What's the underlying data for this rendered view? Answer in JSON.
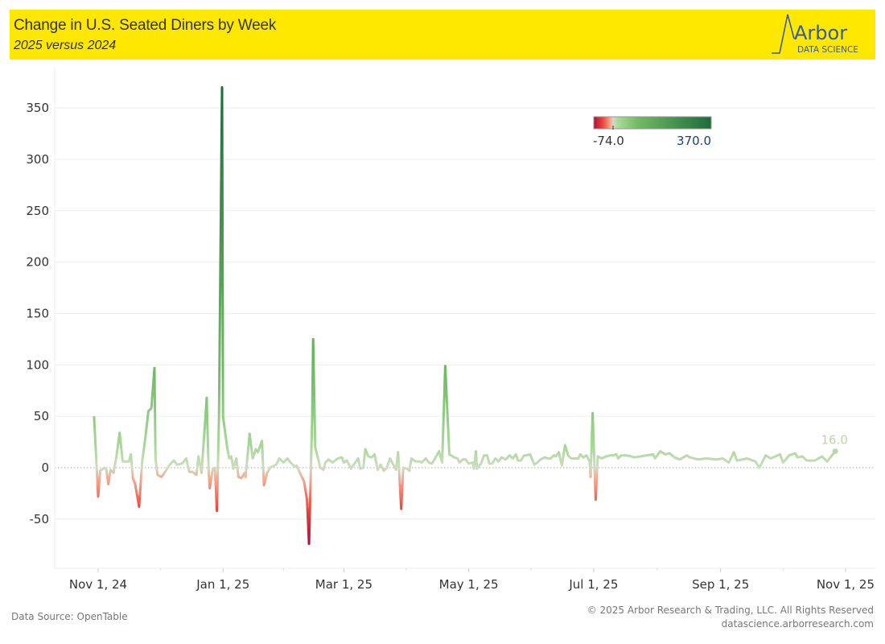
{
  "header": {
    "title": "Change in U.S. Seated Diners by Week",
    "subtitle": "2025 versus 2024",
    "logo_text": "Arbor",
    "logo_subtext": "DATA SCIENCE"
  },
  "footer": {
    "source": "Data Source: OpenTable",
    "copyright": "© 2025 Arbor Research & Trading, LLC. All Rights Reserved",
    "website": "datascience.arborresearch.com"
  },
  "colors": {
    "header_bg": "#ffe800",
    "scale": [
      "#b0103a",
      "#e8483c",
      "#f7a48c",
      "#cfdcc0",
      "#a8d898",
      "#72bb66",
      "#1f6b3a"
    ]
  },
  "chart_data": {
    "type": "line",
    "title": "Change in U.S. Seated Diners by Week",
    "subtitle": "2025 versus 2024",
    "xlabel": "",
    "ylabel": "",
    "x_unit": "days since Nov 1, 2024",
    "ylim": [
      -97,
      380
    ],
    "yticks": [
      -50,
      0,
      50,
      100,
      150,
      200,
      250,
      300,
      350
    ],
    "ytick_labels": [
      "-50",
      "0",
      "50",
      "100",
      "150",
      "200",
      "250",
      "300",
      "350"
    ],
    "xticks": [
      0,
      61,
      120,
      181,
      242,
      304,
      365
    ],
    "xtick_labels": [
      "Nov 1, 24",
      "Jan 1, 25",
      "Mar 1, 25",
      "May 1, 25",
      "Jul 1, 25",
      "Sep 1, 25",
      "Nov 1, 25"
    ],
    "grid": true,
    "legend": {
      "type": "color-gradient",
      "min_label": "-74.0",
      "max_label": "370.0",
      "min": -74,
      "max": 370,
      "placement": "top-right"
    },
    "last_value_label": "16.0",
    "points": [
      [
        -2,
        50
      ],
      [
        0,
        -28
      ],
      [
        1,
        -3
      ],
      [
        3,
        0
      ],
      [
        4,
        -2
      ],
      [
        5,
        -16
      ],
      [
        6,
        -2
      ],
      [
        7.5,
        -5
      ],
      [
        9,
        12
      ],
      [
        10.5,
        34
      ],
      [
        12,
        6
      ],
      [
        15,
        6
      ],
      [
        16,
        13
      ],
      [
        17,
        -11
      ],
      [
        18,
        -15
      ],
      [
        20,
        -38
      ],
      [
        21.5,
        6
      ],
      [
        23,
        28
      ],
      [
        24.5,
        55
      ],
      [
        26,
        58
      ],
      [
        27.5,
        97
      ],
      [
        28,
        9
      ],
      [
        29,
        -7
      ],
      [
        31,
        -9
      ],
      [
        33,
        -3
      ],
      [
        34,
        0
      ],
      [
        35,
        3
      ],
      [
        37,
        7
      ],
      [
        38.5,
        3
      ],
      [
        41,
        4
      ],
      [
        43,
        9
      ],
      [
        44.5,
        -4
      ],
      [
        46,
        -4
      ],
      [
        48,
        -7
      ],
      [
        49,
        11
      ],
      [
        50.5,
        -5
      ],
      [
        52.5,
        52
      ],
      [
        53,
        68
      ],
      [
        54,
        -5
      ],
      [
        54.5,
        -20
      ],
      [
        56,
        -1
      ],
      [
        57,
        0
      ],
      [
        58,
        -42
      ],
      [
        59,
        50
      ],
      [
        60.5,
        370
      ],
      [
        61,
        50
      ],
      [
        63,
        20
      ],
      [
        64,
        9
      ],
      [
        65,
        11
      ],
      [
        66,
        -1
      ],
      [
        67.5,
        9
      ],
      [
        68.5,
        -9
      ],
      [
        70,
        -10
      ],
      [
        71.5,
        -5
      ],
      [
        72,
        -9
      ],
      [
        74,
        33
      ],
      [
        75.5,
        9
      ],
      [
        77,
        18
      ],
      [
        78,
        15
      ],
      [
        80,
        26
      ],
      [
        81,
        -17
      ],
      [
        82.5,
        -5
      ],
      [
        84,
        0
      ],
      [
        87,
        3
      ],
      [
        88.5,
        9
      ],
      [
        90.5,
        5
      ],
      [
        92.5,
        9
      ],
      [
        94,
        5
      ],
      [
        96,
        1
      ],
      [
        97,
        2
      ],
      [
        98.5,
        -5
      ],
      [
        100.5,
        -13
      ],
      [
        102,
        -31
      ],
      [
        103,
        -74
      ],
      [
        104.5,
        48
      ],
      [
        105,
        125
      ],
      [
        106,
        20
      ],
      [
        107.5,
        8
      ],
      [
        108.5,
        0
      ],
      [
        110,
        -2
      ],
      [
        111,
        5
      ],
      [
        112.5,
        8
      ],
      [
        114.5,
        5
      ],
      [
        117,
        9
      ],
      [
        119,
        10
      ],
      [
        120,
        5
      ],
      [
        121.5,
        7
      ],
      [
        123.5,
        -1
      ],
      [
        124.5,
        2
      ],
      [
        127,
        9
      ],
      [
        128,
        -1
      ],
      [
        129.5,
        0
      ],
      [
        130.5,
        18
      ],
      [
        132,
        11
      ],
      [
        133.5,
        10
      ],
      [
        135,
        13
      ],
      [
        136.5,
        -2
      ],
      [
        138,
        3
      ],
      [
        139.5,
        -3
      ],
      [
        141,
        0
      ],
      [
        142.5,
        9
      ],
      [
        145.5,
        -2
      ],
      [
        146.5,
        15
      ],
      [
        148,
        -40
      ],
      [
        149,
        0
      ],
      [
        151,
        -1
      ],
      [
        152,
        -3
      ],
      [
        153,
        9
      ],
      [
        155,
        6
      ],
      [
        157,
        6
      ],
      [
        158,
        5
      ],
      [
        160,
        9
      ],
      [
        161.5,
        5
      ],
      [
        163,
        4
      ],
      [
        164.5,
        9
      ],
      [
        166.5,
        16
      ],
      [
        168,
        5
      ],
      [
        169.5,
        99
      ],
      [
        171.5,
        13
      ],
      [
        174,
        10
      ],
      [
        175.5,
        9
      ],
      [
        176.5,
        5
      ],
      [
        178,
        8
      ],
      [
        179.5,
        8
      ],
      [
        181,
        4
      ],
      [
        183,
        5
      ],
      [
        183.5,
        -1
      ],
      [
        184.5,
        16
      ],
      [
        185,
        -1
      ],
      [
        187,
        4
      ],
      [
        188.5,
        12
      ],
      [
        190,
        12
      ],
      [
        191,
        4
      ],
      [
        192.5,
        4
      ],
      [
        194,
        9
      ],
      [
        195.5,
        6
      ],
      [
        197,
        10
      ],
      [
        199,
        8
      ],
      [
        201,
        12
      ],
      [
        202.5,
        9
      ],
      [
        204,
        13
      ],
      [
        205,
        7
      ],
      [
        206.5,
        7
      ],
      [
        208,
        12
      ],
      [
        209,
        12
      ],
      [
        211,
        13
      ],
      [
        212,
        8
      ],
      [
        213,
        3
      ],
      [
        214.5,
        5
      ],
      [
        216,
        8
      ],
      [
        218,
        10
      ],
      [
        219.5,
        9
      ],
      [
        221,
        9
      ],
      [
        222.5,
        12
      ],
      [
        223.5,
        11
      ],
      [
        225,
        15
      ],
      [
        226.5,
        2
      ],
      [
        228,
        22
      ],
      [
        229.5,
        12
      ],
      [
        231,
        9
      ],
      [
        233,
        9
      ],
      [
        234.5,
        9
      ],
      [
        235.5,
        13
      ],
      [
        237,
        10
      ],
      [
        238.5,
        12
      ],
      [
        240,
        6
      ],
      [
        240.5,
        -9
      ],
      [
        241.5,
        53
      ],
      [
        243,
        -31
      ],
      [
        244,
        11
      ],
      [
        246,
        9
      ],
      [
        248,
        11
      ],
      [
        250,
        12
      ],
      [
        251.5,
        12
      ],
      [
        253,
        13
      ],
      [
        254,
        9
      ],
      [
        255.5,
        12
      ],
      [
        257,
        12
      ],
      [
        258,
        12
      ],
      [
        262,
        10
      ],
      [
        271,
        13
      ],
      [
        272,
        9
      ],
      [
        274.5,
        16
      ],
      [
        277,
        13
      ],
      [
        279,
        14
      ],
      [
        281.5,
        10
      ],
      [
        284,
        8
      ],
      [
        287.5,
        12
      ],
      [
        289,
        10
      ],
      [
        293,
        8
      ],
      [
        297,
        9
      ],
      [
        302,
        8
      ],
      [
        305,
        9
      ],
      [
        308,
        5
      ],
      [
        310.5,
        15
      ],
      [
        312,
        7
      ],
      [
        317,
        9
      ],
      [
        321,
        6
      ],
      [
        323,
        0
      ],
      [
        326,
        12
      ],
      [
        328.5,
        9
      ],
      [
        333,
        13
      ],
      [
        334.5,
        5
      ],
      [
        337.5,
        12
      ],
      [
        340.5,
        14
      ],
      [
        341.5,
        10
      ],
      [
        344,
        11
      ],
      [
        346,
        7
      ],
      [
        350,
        7
      ],
      [
        353.5,
        11
      ],
      [
        356,
        6
      ],
      [
        360,
        16
      ]
    ]
  }
}
